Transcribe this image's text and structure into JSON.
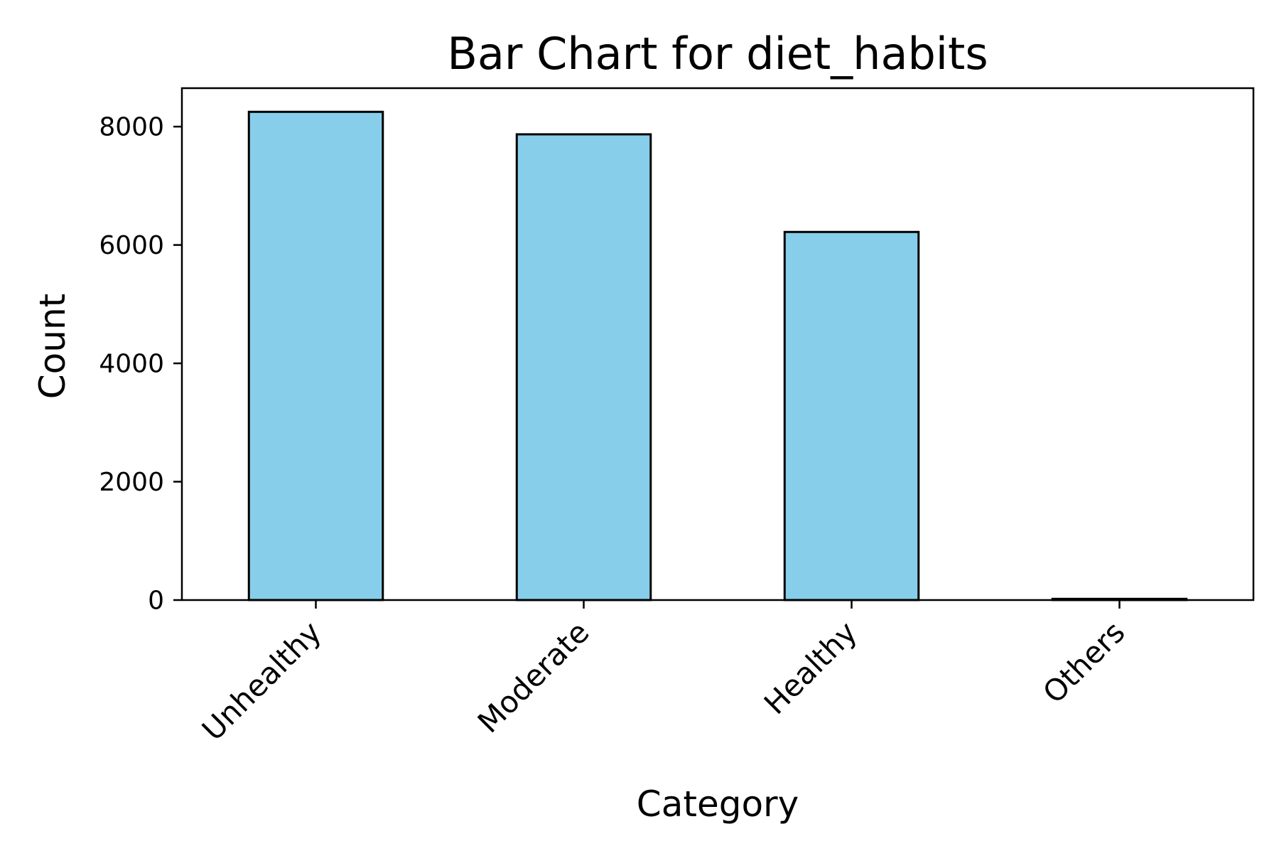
{
  "chart_data": {
    "type": "bar",
    "title": "Bar Chart for diet_habits",
    "xlabel": "Category",
    "ylabel": "Count",
    "categories": [
      "Unhealthy",
      "Moderate",
      "Healthy",
      "Others"
    ],
    "values": [
      8250,
      7870,
      6220,
      20
    ],
    "ylim": [
      0,
      8650
    ],
    "yticks": [
      0,
      2000,
      4000,
      6000,
      8000
    ],
    "ytick_labels": [
      "0",
      "2000",
      "4000",
      "6000",
      "8000"
    ],
    "grid": false,
    "legend": "none",
    "bar_color": "#87CEEB",
    "edge_color": "#000000"
  }
}
